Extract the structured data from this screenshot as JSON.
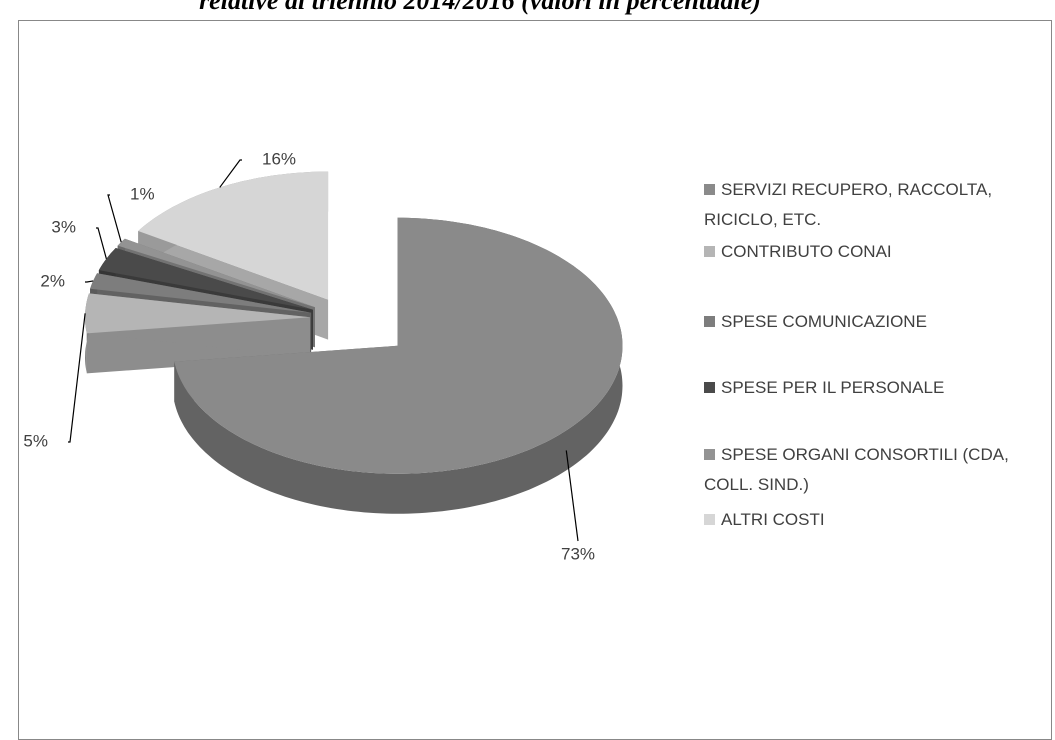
{
  "chart_data": {
    "type": "pie",
    "title": "relative al triennio 2014/2016 (valori in percentuale)",
    "categories": [
      "SERVIZI RECUPERO, RACCOLTA, RICICLO, ETC.",
      "CONTRIBUTO CONAI",
      "SPESE COMUNICAZIONE",
      "SPESE PER IL PERSONALE",
      "SPESE ORGANI CONSORTILI (CDA, COLL. SIND.)",
      "ALTRI COSTI"
    ],
    "values": [
      73,
      5,
      2,
      3,
      1,
      16
    ],
    "value_labels": [
      "73%",
      "5%",
      "2%",
      "3%",
      "1%",
      "16%"
    ],
    "colors": [
      "#8a8a8a",
      "#b5b5b5",
      "#7d7d7d",
      "#4a4a4a",
      "#939393",
      "#d6d6d6"
    ],
    "legend": "right"
  }
}
